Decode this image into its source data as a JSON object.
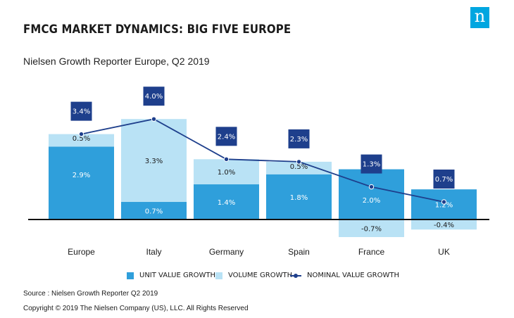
{
  "title": "FMCG MARKET DYNAMICS: BIG FIVE EUROPE",
  "subtitle": "Nielsen Growth Reporter Europe, Q2 2019",
  "logo_text": "n",
  "chart_data": {
    "type": "bar",
    "stacked": true,
    "categories": [
      "Europe",
      "Italy",
      "Germany",
      "Spain",
      "France",
      "UK"
    ],
    "series": [
      {
        "name": "UNIT VALUE GROWTH",
        "values": [
          2.9,
          0.7,
          1.4,
          1.8,
          2.0,
          1.2
        ],
        "labels": [
          "2.9%",
          "0.7%",
          "1.4%",
          "1.8%",
          "2.0%",
          "1.2%"
        ],
        "color": "#2f9fdb"
      },
      {
        "name": "VOLUME GROWTH",
        "values": [
          0.5,
          3.3,
          1.0,
          0.5,
          -0.7,
          -0.4
        ],
        "labels": [
          "0.5%",
          "3.3%",
          "1.0%",
          "0.5%",
          "-0.7%",
          "-0.4%"
        ],
        "color": "#b9e2f5"
      },
      {
        "name": "NOMINAL VALUE GROWTH",
        "type": "line",
        "values": [
          3.4,
          4.0,
          2.4,
          2.3,
          1.3,
          0.7
        ],
        "labels": [
          "3.4%",
          "4.0%",
          "2.4%",
          "2.3%",
          "1.3%",
          "0.7%"
        ],
        "color": "#1e3f8c"
      }
    ],
    "legend_position": "bottom",
    "grid": false
  },
  "source": "Source : Nielsen Growth Reporter Q2 2019",
  "copyright": "Copyright © 2019 The Nielsen Company (US), LLC. All Rights Reserved"
}
